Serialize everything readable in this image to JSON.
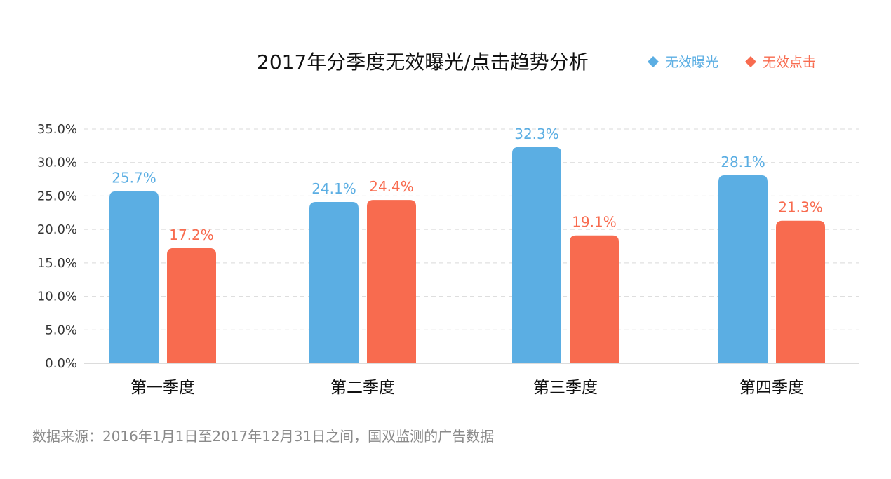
{
  "chart_data": {
    "type": "bar",
    "title": "2017年分季度无效曝光/点击趋势分析",
    "categories": [
      "第一季度",
      "第二季度",
      "第三季度",
      "第四季度"
    ],
    "series": [
      {
        "name": "无效曝光",
        "color": "#5BAEE3",
        "values": [
          25.7,
          24.1,
          32.3,
          28.1
        ],
        "labels": [
          "25.7%",
          "24.1%",
          "32.3%",
          "28.1%"
        ]
      },
      {
        "name": "无效点击",
        "color": "#F86B4F",
        "values": [
          17.2,
          24.4,
          19.1,
          21.3
        ],
        "labels": [
          "17.2%",
          "24.4%",
          "19.1%",
          "21.3%"
        ]
      }
    ],
    "ylim": [
      0,
      35
    ],
    "yticks": [
      0,
      5,
      10,
      15,
      20,
      25,
      30,
      35
    ],
    "ytick_labels": [
      "0.0%",
      "5.0%",
      "10.0%",
      "15.0%",
      "20.0%",
      "25.0%",
      "30.0%",
      "35.0%"
    ],
    "grid": true,
    "legend_position": "top-right",
    "xlabel": "",
    "ylabel": ""
  },
  "source_note": "数据来源：2016年1月1日至2017年12月31日之间，国双监测的广告数据"
}
